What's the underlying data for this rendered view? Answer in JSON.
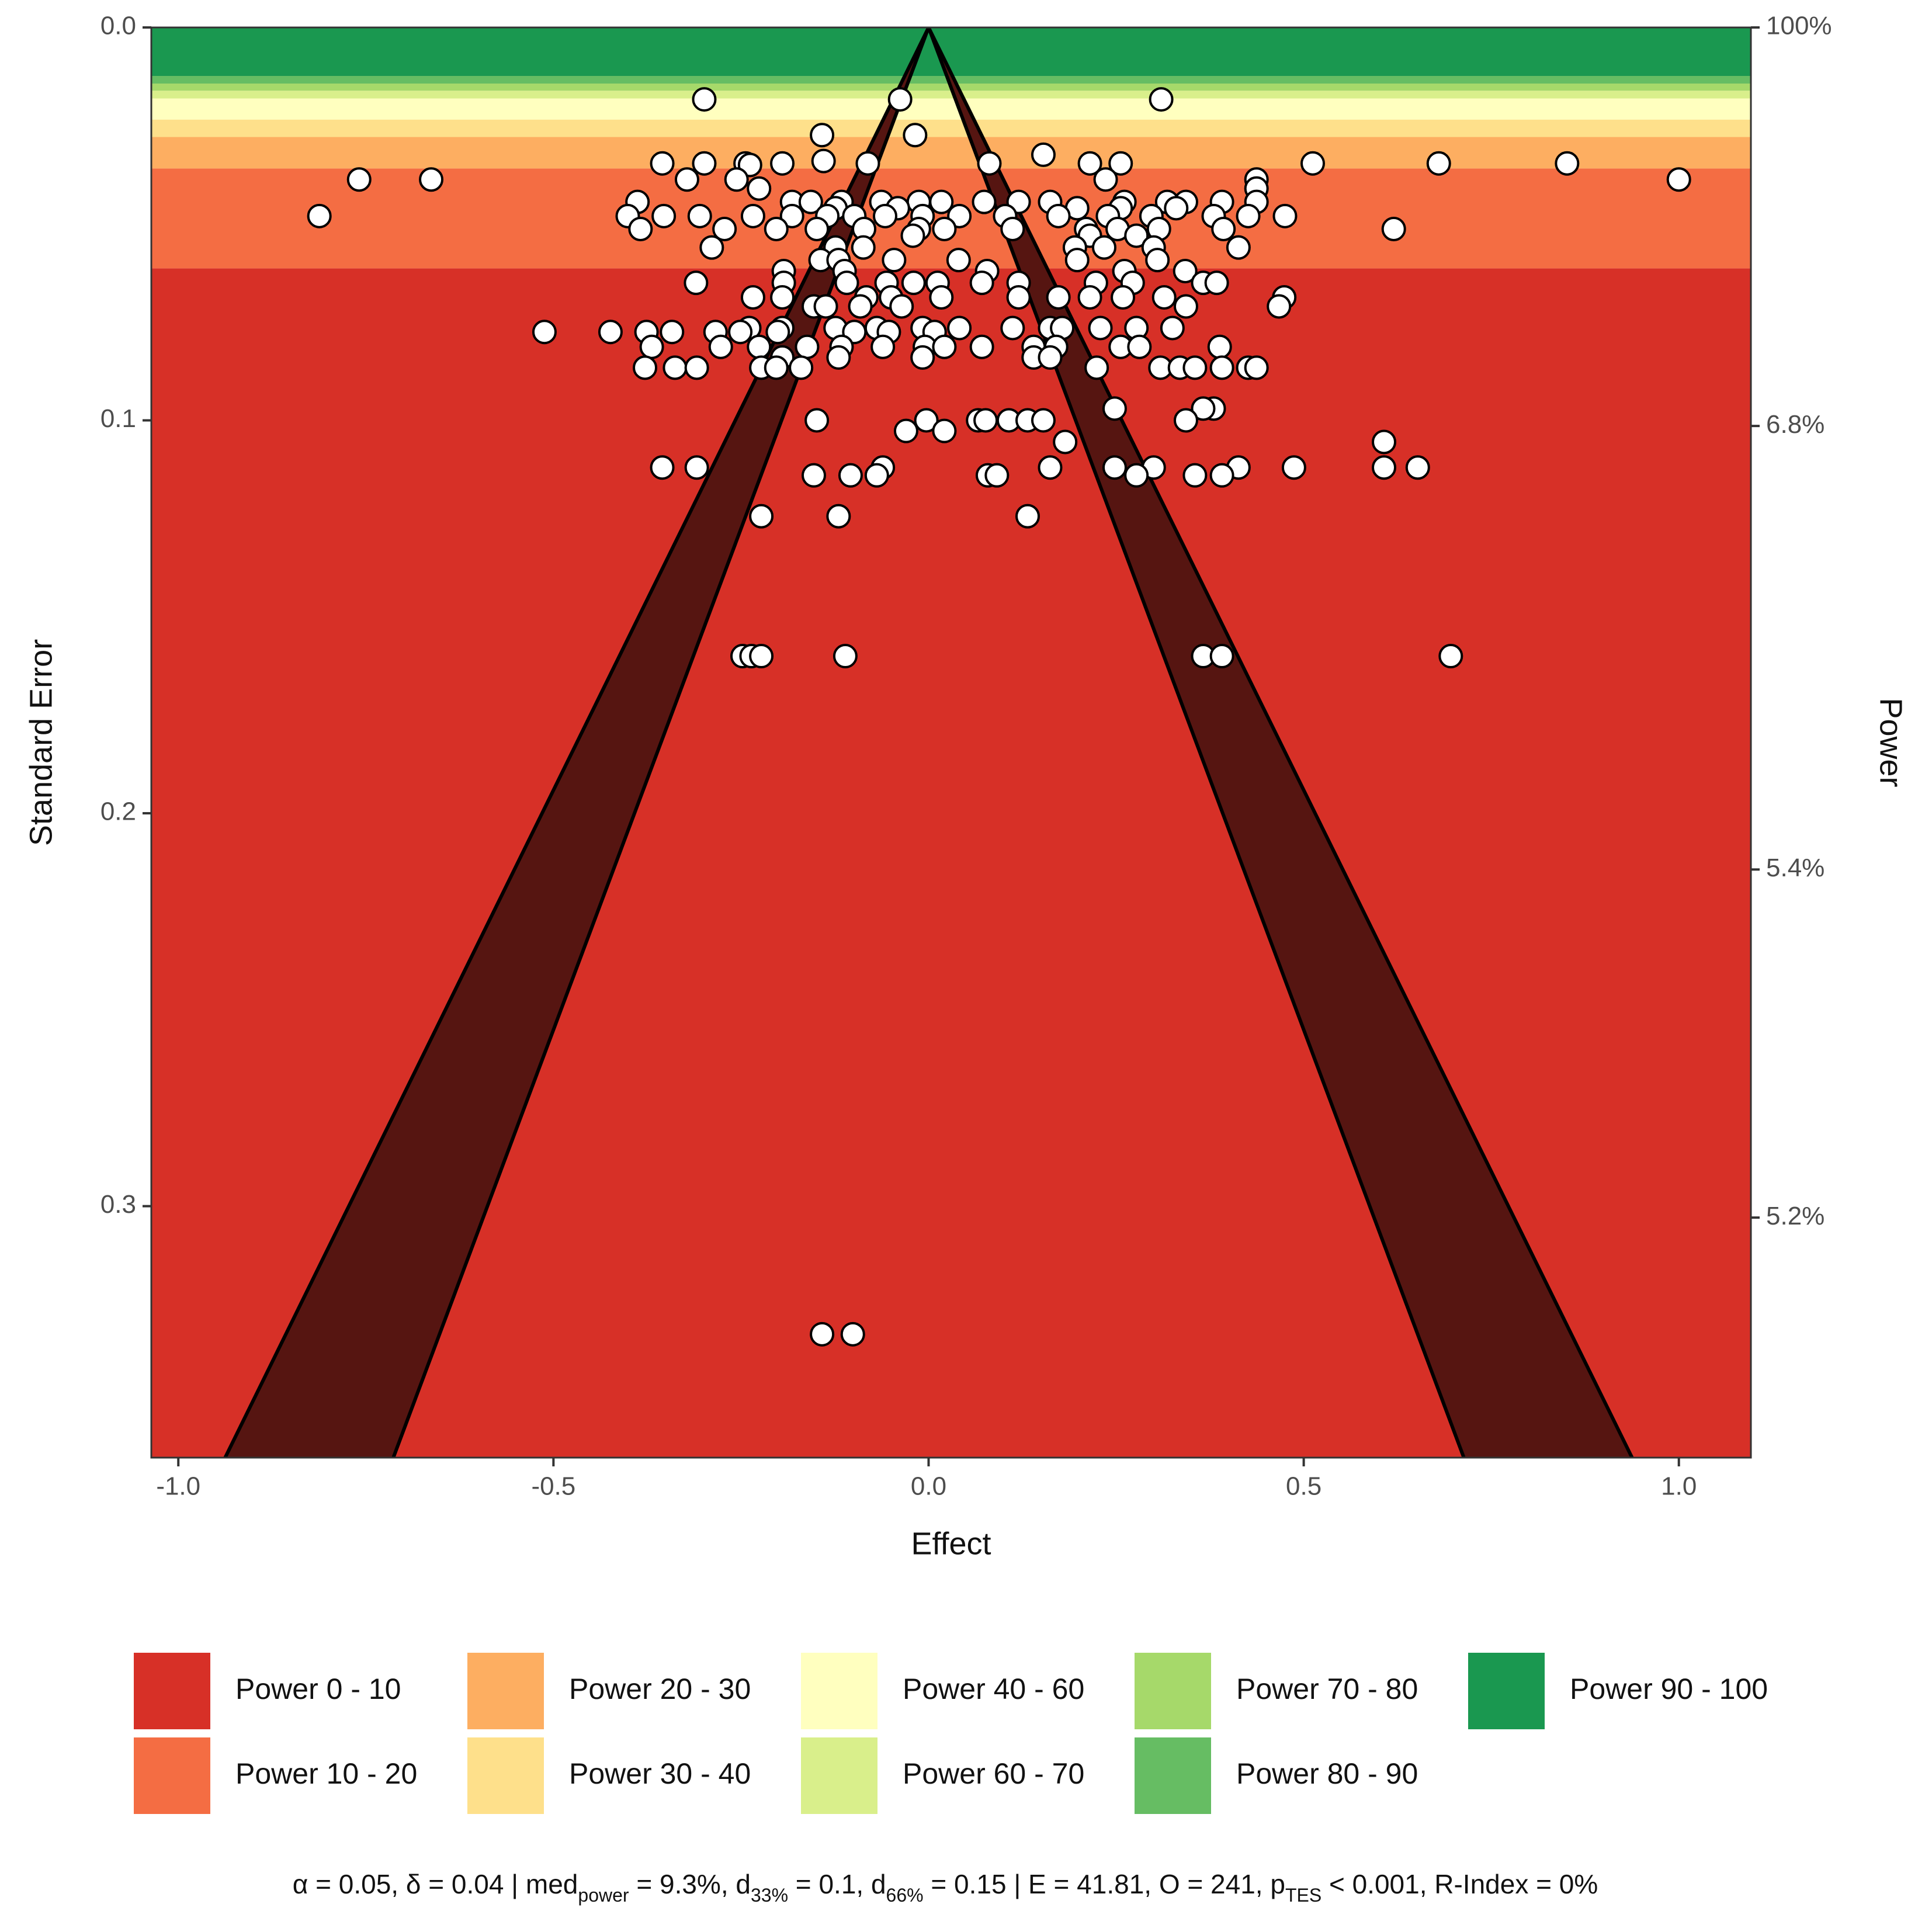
{
  "chart_data": {
    "type": "scatter",
    "xlabel": "Effect",
    "ylabel": "Standard Error",
    "y2label": "Power",
    "xlim": [
      -1.036,
      1.096
    ],
    "ylim": [
      0,
      0.364
    ],
    "y_inverted": true,
    "xticks": [
      {
        "value": -1,
        "label": "-1.0"
      },
      -0.5,
      {
        "value": 0,
        "label": "0.0"
      },
      0.5,
      {
        "value": 1,
        "label": "1.0"
      }
    ],
    "yticks": [
      {
        "value": 0,
        "label": "0.0"
      },
      0.1,
      0.2,
      0.3
    ],
    "y2ticks": [
      {
        "value": 100,
        "label": "100%"
      },
      {
        "value": 6.8,
        "label": "6.8%"
      },
      {
        "value": 5.4,
        "label": "5.4%"
      },
      {
        "value": 5.2,
        "label": "5.2%"
      }
    ],
    "alpha": 0.05,
    "delta": 0.04,
    "funnel_alphas": [
      0.05,
      0.01
    ],
    "funnel_color": "#561511",
    "point_color": "#ffffff",
    "bands": [
      {
        "name": "Power 0 - 10",
        "range": [
          0,
          10
        ],
        "color": "#d73027"
      },
      {
        "name": "Power 10 - 20",
        "range": [
          10,
          20
        ],
        "color": "#f46d43"
      },
      {
        "name": "Power 20 - 30",
        "range": [
          20,
          30
        ],
        "color": "#fdae61"
      },
      {
        "name": "Power 30 - 40",
        "range": [
          30,
          40
        ],
        "color": "#fee08b"
      },
      {
        "name": "Power 40 - 60",
        "range": [
          40,
          60
        ],
        "color": "#ffffbf"
      },
      {
        "name": "Power 60 - 70",
        "range": [
          60,
          70
        ],
        "color": "#d9ef8b"
      },
      {
        "name": "Power 70 - 80",
        "range": [
          70,
          80
        ],
        "color": "#a6d96a"
      },
      {
        "name": "Power 80 - 90",
        "range": [
          80,
          90
        ],
        "color": "#66bd63"
      },
      {
        "name": "Power 90 - 100",
        "range": [
          90,
          100
        ],
        "color": "#1a9850"
      }
    ],
    "caption": [
      {
        "text": "α = 0.05, δ = 0.04 | med"
      },
      {
        "sub": "power"
      },
      {
        "text": " = 9.3%, d"
      },
      {
        "sub": "33%"
      },
      {
        "text": " = 0.1, d"
      },
      {
        "sub": "66%"
      },
      {
        "text": " = 0.15 | E = 41.81, O = 241, p"
      },
      {
        "sub": "TES"
      },
      {
        "text": " < 0.001, R-Index = 0%"
      }
    ],
    "x": [
      -0.299,
      -0.038,
      0.31,
      -0.018,
      -0.142,
      0.153,
      -0.355,
      -0.299,
      -0.244,
      -0.195,
      -0.081,
      0.081,
      0.215,
      0.256,
      0.512,
      0.68,
      0.851,
      -0.14,
      -0.238,
      -0.759,
      -0.663,
      -0.322,
      -0.256,
      1.0,
      0.437,
      0.236,
      0.437,
      -0.226,
      -0.388,
      -0.182,
      -0.157,
      -0.116,
      -0.063,
      -0.013,
      0.017,
      0.074,
      0.12,
      0.162,
      0.261,
      0.318,
      0.343,
      0.391,
      0.437,
      -0.124,
      -0.041,
      0.198,
      0.256,
      0.33,
      -0.812,
      -0.401,
      -0.353,
      -0.305,
      -0.234,
      -0.182,
      -0.135,
      -0.099,
      -0.058,
      -0.008,
      0.041,
      0.102,
      0.173,
      0.239,
      0.297,
      0.38,
      0.426,
      0.475,
      -0.384,
      -0.272,
      -0.203,
      -0.149,
      -0.086,
      -0.013,
      0.021,
      0.112,
      0.21,
      0.252,
      0.307,
      0.393,
      0.62,
      -0.021,
      0.277,
      0.215,
      -0.289,
      -0.087,
      0.413,
      0.234,
      0.195,
      0.3,
      -0.124,
      -0.144,
      -0.046,
      0.04,
      -0.12,
      0.305,
      0.198,
      -0.193,
      -0.112,
      0.078,
      0.261,
      0.342,
      -0.31,
      -0.193,
      -0.109,
      -0.056,
      -0.02,
      0.012,
      0.071,
      0.12,
      0.223,
      0.272,
      0.366,
      0.384,
      -0.234,
      -0.195,
      -0.083,
      -0.05,
      0.017,
      0.12,
      0.173,
      0.215,
      0.259,
      0.314,
      0.474,
      -0.153,
      -0.091,
      -0.036,
      0.343,
      0.467,
      -0.137,
      -0.239,
      -0.195,
      -0.124,
      -0.069,
      -0.008,
      0.041,
      0.112,
      0.162,
      0.178,
      0.229,
      0.277,
      0.325,
      -0.512,
      -0.424,
      -0.376,
      -0.342,
      -0.284,
      -0.251,
      -0.201,
      -0.099,
      -0.053,
      0.008,
      -0.369,
      -0.277,
      -0.226,
      -0.162,
      -0.116,
      -0.061,
      -0.005,
      0.021,
      0.071,
      0.14,
      0.17,
      0.256,
      0.281,
      0.388,
      -0.195,
      -0.12,
      -0.008,
      0.14,
      0.162,
      -0.378,
      -0.338,
      -0.309,
      -0.223,
      -0.203,
      -0.17,
      0.224,
      0.309,
      0.335,
      0.355,
      0.391,
      0.426,
      0.437,
      0.248,
      0.38,
      0.366,
      -0.149,
      -0.003,
      0.066,
      0.076,
      0.107,
      0.132,
      0.153,
      0.343,
      -0.03,
      0.021,
      0.182,
      0.607,
      -0.355,
      -0.309,
      0.162,
      0.248,
      0.3,
      0.413,
      0.487,
      0.607,
      0.652,
      -0.061,
      -0.153,
      -0.104,
      -0.069,
      0.079,
      0.091,
      0.277,
      0.355,
      0.391,
      -0.223,
      -0.12,
      0.132,
      -0.248,
      -0.236,
      -0.223,
      -0.111,
      0.366,
      0.391,
      0.696,
      -0.142,
      -0.101
    ],
    "values": [
      0.0183,
      0.0183,
      0.0183,
      0.0274,
      0.0274,
      0.0324,
      0.0346,
      0.0346,
      0.0346,
      0.0346,
      0.0346,
      0.0346,
      0.0346,
      0.0346,
      0.0346,
      0.0346,
      0.0346,
      0.034,
      0.035,
      0.0387,
      0.0387,
      0.0387,
      0.0387,
      0.0387,
      0.0387,
      0.0387,
      0.041,
      0.041,
      0.0444,
      0.0444,
      0.0444,
      0.0444,
      0.0444,
      0.0444,
      0.0444,
      0.0444,
      0.0444,
      0.0444,
      0.0444,
      0.0444,
      0.0444,
      0.0444,
      0.0444,
      0.046,
      0.046,
      0.046,
      0.046,
      0.046,
      0.048,
      0.048,
      0.048,
      0.048,
      0.048,
      0.048,
      0.048,
      0.048,
      0.048,
      0.048,
      0.048,
      0.048,
      0.048,
      0.048,
      0.048,
      0.048,
      0.048,
      0.048,
      0.0513,
      0.0513,
      0.0513,
      0.0513,
      0.0513,
      0.0513,
      0.0513,
      0.0513,
      0.0513,
      0.0513,
      0.0513,
      0.0513,
      0.0513,
      0.053,
      0.053,
      0.053,
      0.056,
      0.056,
      0.056,
      0.056,
      0.056,
      0.056,
      0.056,
      0.0592,
      0.0592,
      0.0592,
      0.0592,
      0.0592,
      0.0592,
      0.062,
      0.062,
      0.062,
      0.062,
      0.062,
      0.065,
      0.065,
      0.065,
      0.065,
      0.065,
      0.065,
      0.065,
      0.065,
      0.065,
      0.065,
      0.065,
      0.065,
      0.0687,
      0.0687,
      0.0687,
      0.0687,
      0.0687,
      0.0687,
      0.0687,
      0.0687,
      0.0687,
      0.0687,
      0.0687,
      0.071,
      0.071,
      0.071,
      0.071,
      0.071,
      0.071,
      0.0765,
      0.0765,
      0.0765,
      0.0765,
      0.0765,
      0.0765,
      0.0765,
      0.0765,
      0.0765,
      0.0765,
      0.0765,
      0.0765,
      0.0775,
      0.0775,
      0.0775,
      0.0775,
      0.0775,
      0.0775,
      0.0775,
      0.0775,
      0.0775,
      0.0775,
      0.0813,
      0.0813,
      0.0813,
      0.0813,
      0.0813,
      0.0813,
      0.0813,
      0.0813,
      0.0813,
      0.0813,
      0.0813,
      0.0813,
      0.0813,
      0.0813,
      0.084,
      0.084,
      0.084,
      0.084,
      0.084,
      0.0866,
      0.0866,
      0.0866,
      0.0866,
      0.0866,
      0.0866,
      0.0866,
      0.0866,
      0.0866,
      0.0866,
      0.0866,
      0.0866,
      0.0866,
      0.097,
      0.097,
      0.097,
      0.1,
      0.1,
      0.1,
      0.1,
      0.1,
      0.1,
      0.1,
      0.1,
      0.1027,
      0.1027,
      0.1055,
      0.1055,
      0.112,
      0.112,
      0.112,
      0.112,
      0.112,
      0.112,
      0.112,
      0.112,
      0.112,
      0.112,
      0.114,
      0.114,
      0.114,
      0.114,
      0.114,
      0.114,
      0.114,
      0.114,
      0.1244,
      0.1244,
      0.1244,
      0.16,
      0.16,
      0.16,
      0.16,
      0.16,
      0.16,
      0.16,
      0.3326,
      0.3326
    ]
  }
}
